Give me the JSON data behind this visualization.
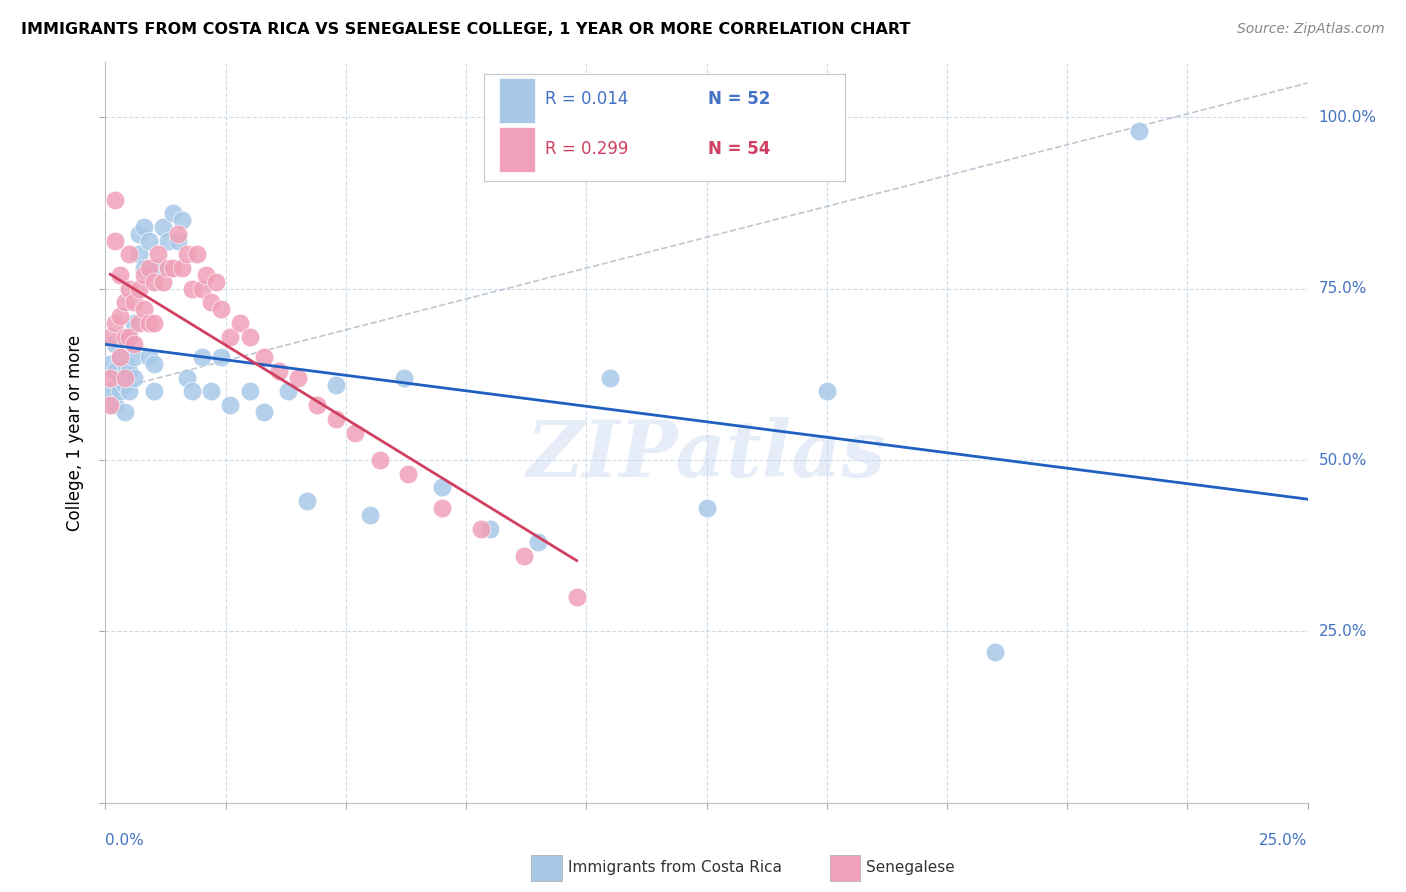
{
  "title": "IMMIGRANTS FROM COSTA RICA VS SENEGALESE COLLEGE, 1 YEAR OR MORE CORRELATION CHART",
  "source": "Source: ZipAtlas.com",
  "ylabel": "College, 1 year or more",
  "xlim": [
    0.0,
    0.25
  ],
  "ylim": [
    0.0,
    1.08
  ],
  "blue_color": "#a8c8e8",
  "pink_color": "#f0a0b8",
  "blue_line_color": "#2060c0",
  "pink_line_color": "#d04060",
  "gray_dash_color": "#b0b8c8",
  "watermark": "ZIPatlas",
  "legend_blue_r": "R = 0.014",
  "legend_blue_n": "N = 52",
  "legend_pink_r": "R = 0.299",
  "legend_pink_n": "N = 54",
  "costa_rica_x": [
    0.001,
    0.001,
    0.002,
    0.002,
    0.002,
    0.003,
    0.003,
    0.003,
    0.004,
    0.004,
    0.004,
    0.005,
    0.005,
    0.005,
    0.006,
    0.006,
    0.006,
    0.007,
    0.007,
    0.008,
    0.008,
    0.009,
    0.009,
    0.01,
    0.01,
    0.011,
    0.012,
    0.013,
    0.014,
    0.015,
    0.016,
    0.017,
    0.018,
    0.02,
    0.022,
    0.024,
    0.026,
    0.03,
    0.033,
    0.038,
    0.042,
    0.048,
    0.055,
    0.062,
    0.07,
    0.08,
    0.09,
    0.105,
    0.125,
    0.15,
    0.185,
    0.215
  ],
  "costa_rica_y": [
    0.64,
    0.6,
    0.63,
    0.67,
    0.58,
    0.62,
    0.65,
    0.6,
    0.64,
    0.61,
    0.57,
    0.63,
    0.6,
    0.68,
    0.65,
    0.62,
    0.7,
    0.83,
    0.8,
    0.84,
    0.78,
    0.82,
    0.65,
    0.6,
    0.64,
    0.78,
    0.84,
    0.82,
    0.86,
    0.82,
    0.85,
    0.62,
    0.6,
    0.65,
    0.6,
    0.65,
    0.58,
    0.6,
    0.57,
    0.6,
    0.44,
    0.61,
    0.42,
    0.62,
    0.46,
    0.4,
    0.38,
    0.62,
    0.43,
    0.6,
    0.22,
    0.98
  ],
  "senegalese_x": [
    0.001,
    0.001,
    0.001,
    0.002,
    0.002,
    0.002,
    0.003,
    0.003,
    0.003,
    0.004,
    0.004,
    0.004,
    0.005,
    0.005,
    0.005,
    0.006,
    0.006,
    0.007,
    0.007,
    0.008,
    0.008,
    0.009,
    0.009,
    0.01,
    0.01,
    0.011,
    0.012,
    0.013,
    0.014,
    0.015,
    0.016,
    0.017,
    0.018,
    0.019,
    0.02,
    0.021,
    0.022,
    0.023,
    0.024,
    0.026,
    0.028,
    0.03,
    0.033,
    0.036,
    0.04,
    0.044,
    0.048,
    0.052,
    0.057,
    0.063,
    0.07,
    0.078,
    0.087,
    0.098
  ],
  "senegalese_y": [
    0.62,
    0.68,
    0.58,
    0.88,
    0.82,
    0.7,
    0.77,
    0.71,
    0.65,
    0.73,
    0.68,
    0.62,
    0.8,
    0.75,
    0.68,
    0.73,
    0.67,
    0.75,
    0.7,
    0.77,
    0.72,
    0.78,
    0.7,
    0.76,
    0.7,
    0.8,
    0.76,
    0.78,
    0.78,
    0.83,
    0.78,
    0.8,
    0.75,
    0.8,
    0.75,
    0.77,
    0.73,
    0.76,
    0.72,
    0.68,
    0.7,
    0.68,
    0.65,
    0.63,
    0.62,
    0.58,
    0.56,
    0.54,
    0.5,
    0.48,
    0.43,
    0.4,
    0.36,
    0.3
  ]
}
